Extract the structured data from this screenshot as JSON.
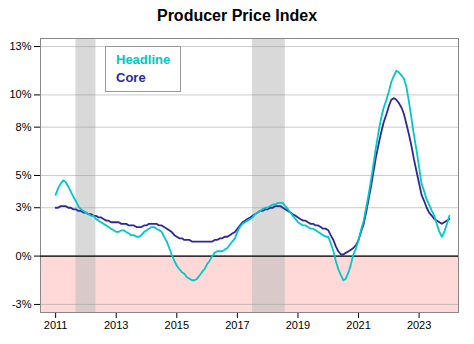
{
  "chart_data": {
    "type": "line",
    "title": "Producer Price Index",
    "x": [
      2011.0,
      2011.08,
      2011.17,
      2011.25,
      2011.33,
      2011.42,
      2011.5,
      2011.58,
      2011.67,
      2011.75,
      2011.83,
      2011.92,
      2012.0,
      2012.08,
      2012.17,
      2012.25,
      2012.33,
      2012.42,
      2012.5,
      2012.58,
      2012.67,
      2012.75,
      2012.83,
      2012.92,
      2013.0,
      2013.08,
      2013.17,
      2013.25,
      2013.33,
      2013.42,
      2013.5,
      2013.58,
      2013.67,
      2013.75,
      2013.83,
      2013.92,
      2014.0,
      2014.08,
      2014.17,
      2014.25,
      2014.33,
      2014.42,
      2014.5,
      2014.58,
      2014.67,
      2014.75,
      2014.83,
      2014.92,
      2015.0,
      2015.08,
      2015.17,
      2015.25,
      2015.33,
      2015.42,
      2015.5,
      2015.58,
      2015.67,
      2015.75,
      2015.83,
      2015.92,
      2016.0,
      2016.08,
      2016.17,
      2016.25,
      2016.33,
      2016.42,
      2016.5,
      2016.58,
      2016.67,
      2016.75,
      2016.83,
      2016.92,
      2017.0,
      2017.08,
      2017.17,
      2017.25,
      2017.33,
      2017.42,
      2017.5,
      2017.58,
      2017.67,
      2017.75,
      2017.83,
      2017.92,
      2018.0,
      2018.08,
      2018.17,
      2018.25,
      2018.33,
      2018.42,
      2018.5,
      2018.58,
      2018.67,
      2018.75,
      2018.83,
      2018.92,
      2019.0,
      2019.08,
      2019.17,
      2019.25,
      2019.33,
      2019.42,
      2019.5,
      2019.58,
      2019.67,
      2019.75,
      2019.83,
      2019.92,
      2020.0,
      2020.08,
      2020.17,
      2020.25,
      2020.33,
      2020.42,
      2020.5,
      2020.58,
      2020.67,
      2020.75,
      2020.83,
      2020.92,
      2021.0,
      2021.08,
      2021.17,
      2021.25,
      2021.33,
      2021.42,
      2021.5,
      2021.58,
      2021.67,
      2021.75,
      2021.83,
      2021.92,
      2022.0,
      2022.08,
      2022.17,
      2022.25,
      2022.33,
      2022.42,
      2022.5,
      2022.58,
      2022.67,
      2022.75,
      2022.83,
      2022.92,
      2023.0,
      2023.08,
      2023.17,
      2023.25,
      2023.33,
      2023.42,
      2023.5,
      2023.58,
      2023.67,
      2023.75,
      2023.83,
      2023.92,
      2024.0
    ],
    "series": [
      {
        "name": "Headline",
        "color": "#00C8C8",
        "values": [
          3.8,
          4.2,
          4.5,
          4.7,
          4.6,
          4.3,
          4.0,
          3.7,
          3.4,
          3.1,
          2.9,
          2.8,
          2.7,
          2.6,
          2.5,
          2.5,
          2.3,
          2.2,
          2.1,
          2.0,
          1.9,
          1.8,
          1.7,
          1.6,
          1.5,
          1.5,
          1.6,
          1.6,
          1.5,
          1.4,
          1.3,
          1.3,
          1.2,
          1.2,
          1.3,
          1.5,
          1.6,
          1.7,
          1.8,
          1.8,
          1.7,
          1.6,
          1.5,
          1.2,
          0.9,
          0.5,
          0.1,
          -0.3,
          -0.6,
          -0.8,
          -1.0,
          -1.1,
          -1.3,
          -1.4,
          -1.5,
          -1.5,
          -1.4,
          -1.2,
          -1.0,
          -0.8,
          -0.5,
          -0.3,
          0.0,
          0.2,
          0.3,
          0.3,
          0.3,
          0.4,
          0.5,
          0.7,
          0.9,
          1.1,
          1.5,
          1.8,
          2.0,
          2.1,
          2.2,
          2.3,
          2.4,
          2.6,
          2.7,
          2.8,
          2.9,
          3.0,
          3.0,
          3.1,
          3.2,
          3.2,
          3.3,
          3.3,
          3.3,
          3.1,
          2.9,
          2.7,
          2.5,
          2.3,
          2.1,
          2.0,
          1.9,
          1.9,
          1.8,
          1.7,
          1.7,
          1.6,
          1.5,
          1.4,
          1.3,
          1.2,
          1.2,
          0.8,
          0.3,
          -0.3,
          -0.8,
          -1.2,
          -1.5,
          -1.4,
          -1.0,
          -0.5,
          0.1,
          0.5,
          1.0,
          1.6,
          2.2,
          3.0,
          3.8,
          4.8,
          5.8,
          6.8,
          7.8,
          8.6,
          9.2,
          9.7,
          10.2,
          10.8,
          11.2,
          11.5,
          11.4,
          11.2,
          11.0,
          10.5,
          9.5,
          8.5,
          7.5,
          6.5,
          5.5,
          4.5,
          4.0,
          3.5,
          3.2,
          2.8,
          2.5,
          2.0,
          1.5,
          1.2,
          1.5,
          2.0,
          2.5
        ]
      },
      {
        "name": "Core",
        "color": "#2E2896",
        "values": [
          3.0,
          3.0,
          3.1,
          3.1,
          3.1,
          3.0,
          3.0,
          2.9,
          2.9,
          2.8,
          2.8,
          2.7,
          2.7,
          2.6,
          2.6,
          2.5,
          2.5,
          2.4,
          2.4,
          2.3,
          2.2,
          2.2,
          2.1,
          2.1,
          2.1,
          2.1,
          2.0,
          2.0,
          2.0,
          1.9,
          1.9,
          1.9,
          1.8,
          1.8,
          1.8,
          1.9,
          1.9,
          2.0,
          2.0,
          2.0,
          2.0,
          1.9,
          1.9,
          1.8,
          1.7,
          1.6,
          1.5,
          1.3,
          1.2,
          1.1,
          1.1,
          1.0,
          1.0,
          1.0,
          0.9,
          0.9,
          0.9,
          0.9,
          0.9,
          0.9,
          0.9,
          0.9,
          0.9,
          1.0,
          1.0,
          1.1,
          1.1,
          1.2,
          1.2,
          1.3,
          1.4,
          1.5,
          1.7,
          1.9,
          2.1,
          2.2,
          2.3,
          2.4,
          2.5,
          2.6,
          2.7,
          2.8,
          2.8,
          2.9,
          2.9,
          3.0,
          3.0,
          3.1,
          3.1,
          3.1,
          3.0,
          2.9,
          2.8,
          2.7,
          2.6,
          2.5,
          2.4,
          2.3,
          2.2,
          2.2,
          2.1,
          2.0,
          2.0,
          1.9,
          1.9,
          1.8,
          1.7,
          1.7,
          1.6,
          1.3,
          1.0,
          0.6,
          0.3,
          0.1,
          0.1,
          0.2,
          0.3,
          0.4,
          0.5,
          0.7,
          1.0,
          1.5,
          2.0,
          2.7,
          3.5,
          4.4,
          5.3,
          6.2,
          7.0,
          7.7,
          8.3,
          8.8,
          9.3,
          9.7,
          9.8,
          9.7,
          9.5,
          9.2,
          8.8,
          8.2,
          7.5,
          6.8,
          6.0,
          5.2,
          4.5,
          3.8,
          3.4,
          3.0,
          2.7,
          2.5,
          2.3,
          2.2,
          2.1,
          2.0,
          2.1,
          2.2,
          2.3
        ]
      }
    ],
    "xlim": [
      2010.5,
      2024.3
    ],
    "xticks": [
      2011,
      2013,
      2015,
      2017,
      2019,
      2021,
      2023
    ],
    "ylim": [
      -3.5,
      13.5
    ],
    "yticks": [
      {
        "value": -3,
        "label": "-3%"
      },
      {
        "value": 0,
        "label": "0%"
      },
      {
        "value": 3,
        "label": "3%"
      },
      {
        "value": 5,
        "label": "5%"
      },
      {
        "value": 8,
        "label": "8%"
      },
      {
        "value": 10,
        "label": "10%"
      },
      {
        "value": 13,
        "label": "13%"
      }
    ],
    "shading": [
      {
        "y": [
          -3.5,
          0
        ],
        "color": "#FFD8D8"
      },
      {
        "x": [
          2011.67,
          2012.33
        ],
        "color": "#C0C0C0"
      },
      {
        "x": [
          2017.5,
          2018.58
        ],
        "color": "#C0C0C0"
      }
    ],
    "reference_lines": [
      0
    ],
    "grid": true,
    "legend": "upper left"
  }
}
